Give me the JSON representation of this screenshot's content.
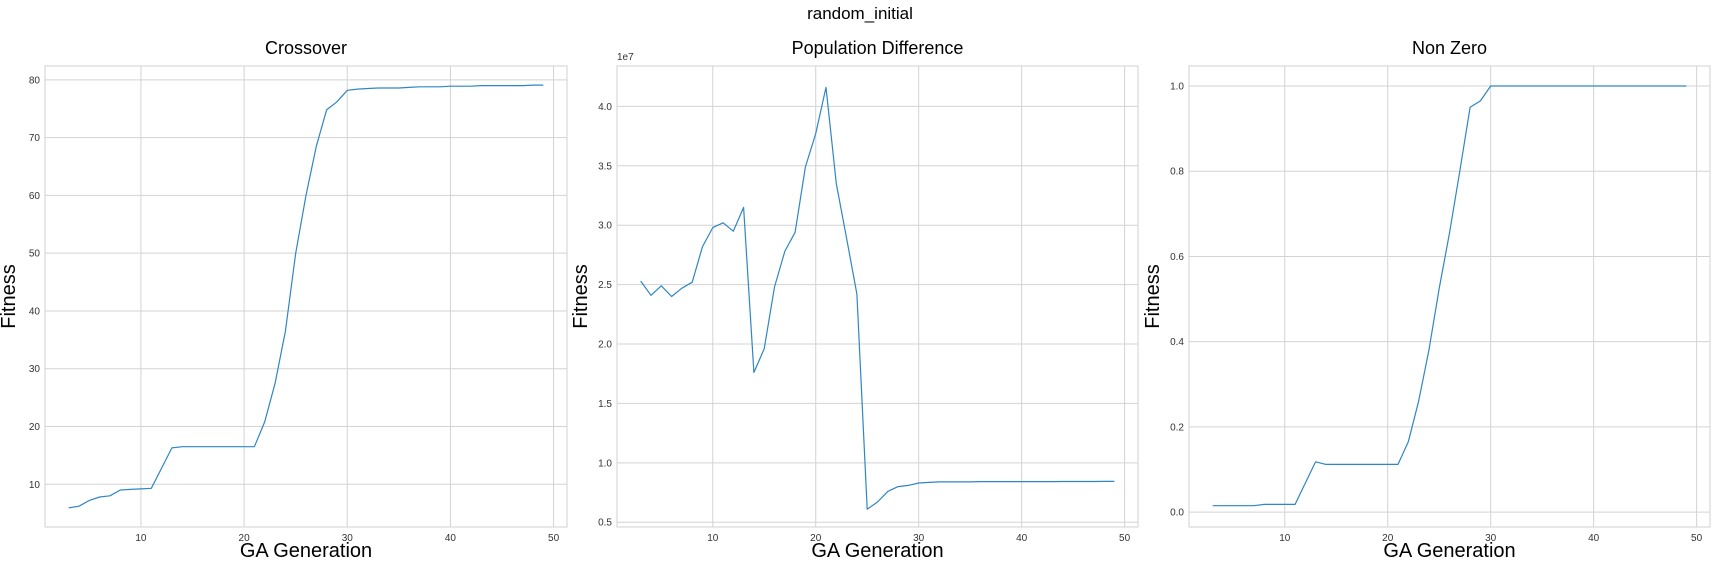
{
  "figure": {
    "title": "random_initial"
  },
  "colors": {
    "line": "#2f86c3"
  },
  "chart_data": [
    {
      "type": "line",
      "title": "Crossover",
      "xlabel": "GA Generation",
      "ylabel": "Fitness",
      "xlim": [
        0.7,
        51.3
      ],
      "ylim": [
        2.6,
        82.4
      ],
      "xticks": [
        10,
        20,
        30,
        40,
        50
      ],
      "yticks": [
        10,
        20,
        30,
        40,
        50,
        60,
        70,
        80
      ],
      "ytick_labels": [
        "10",
        "20",
        "30",
        "40",
        "50",
        "60",
        "70",
        "80"
      ],
      "grid": true,
      "x": [
        3,
        4,
        5,
        6,
        7,
        8,
        9,
        10,
        11,
        12,
        13,
        14,
        15,
        16,
        17,
        18,
        19,
        20,
        21,
        22,
        23,
        24,
        25,
        26,
        27,
        28,
        29,
        30,
        31,
        32,
        33,
        34,
        35,
        36,
        37,
        38,
        39,
        40,
        41,
        42,
        43,
        44,
        45,
        46,
        47,
        48,
        49
      ],
      "series": [
        {
          "values": [
            5.9,
            6.2,
            7.2,
            7.8,
            8.0,
            9.0,
            9.1,
            9.2,
            9.3,
            12.8,
            16.3,
            16.5,
            16.5,
            16.5,
            16.5,
            16.5,
            16.5,
            16.5,
            16.5,
            20.8,
            27.5,
            36.5,
            50.0,
            60.0,
            68.5,
            74.8,
            76.2,
            78.2,
            78.4,
            78.5,
            78.6,
            78.6,
            78.6,
            78.7,
            78.8,
            78.8,
            78.8,
            78.9,
            78.9,
            78.9,
            79.0,
            79.0,
            79.0,
            79.0,
            79.0,
            79.1,
            79.1
          ]
        }
      ]
    },
    {
      "type": "line",
      "title": "Population Difference",
      "xlabel": "GA Generation",
      "ylabel": "Fitness",
      "offset_text": "1e7",
      "xlim": [
        0.7,
        51.3
      ],
      "ylim": [
        4.6,
        43.4
      ],
      "y_units": "×1e7",
      "xticks": [
        10,
        20,
        30,
        40,
        50
      ],
      "yticks": [
        5,
        10,
        15,
        20,
        25,
        30,
        35,
        40
      ],
      "ytick_labels": [
        "0.5",
        "1.0",
        "1.5",
        "2.0",
        "2.5",
        "3.0",
        "3.5",
        "4.0"
      ],
      "grid": true,
      "x": [
        3,
        4,
        5,
        6,
        7,
        8,
        9,
        10,
        11,
        12,
        13,
        14,
        15,
        16,
        17,
        18,
        19,
        20,
        21,
        22,
        23,
        24,
        25,
        26,
        27,
        28,
        29,
        30,
        31,
        32,
        33,
        34,
        35,
        36,
        37,
        38,
        39,
        40,
        41,
        42,
        43,
        44,
        45,
        46,
        47,
        48,
        49
      ],
      "series": [
        {
          "values": [
            25.3,
            24.1,
            24.9,
            24.0,
            24.7,
            25.2,
            28.2,
            29.8,
            30.2,
            29.5,
            31.5,
            17.6,
            19.6,
            24.8,
            27.8,
            29.4,
            34.9,
            37.7,
            41.6,
            33.5,
            28.9,
            24.2,
            6.1,
            6.7,
            7.6,
            8.0,
            8.1,
            8.3,
            8.35,
            8.4,
            8.4,
            8.4,
            8.4,
            8.42,
            8.42,
            8.42,
            8.42,
            8.42,
            8.42,
            8.42,
            8.42,
            8.43,
            8.43,
            8.43,
            8.43,
            8.44,
            8.44
          ]
        }
      ]
    },
    {
      "type": "line",
      "title": "Non Zero",
      "xlabel": "GA Generation",
      "ylabel": "Fitness",
      "xlim": [
        0.7,
        51.3
      ],
      "ylim": [
        -0.035,
        1.047
      ],
      "xticks": [
        10,
        20,
        30,
        40,
        50
      ],
      "yticks": [
        0.0,
        0.2,
        0.4,
        0.6,
        0.8,
        1.0
      ],
      "ytick_labels": [
        "0.0",
        "0.2",
        "0.4",
        "0.6",
        "0.8",
        "1.0"
      ],
      "grid": true,
      "x": [
        3,
        4,
        5,
        6,
        7,
        8,
        9,
        10,
        11,
        12,
        13,
        14,
        15,
        16,
        17,
        18,
        19,
        20,
        21,
        22,
        23,
        24,
        25,
        26,
        27,
        28,
        29,
        30,
        31,
        32,
        33,
        34,
        35,
        36,
        37,
        38,
        39,
        40,
        41,
        42,
        43,
        44,
        45,
        46,
        47,
        48,
        49
      ],
      "series": [
        {
          "values": [
            0.015,
            0.015,
            0.015,
            0.015,
            0.015,
            0.018,
            0.018,
            0.018,
            0.018,
            0.068,
            0.118,
            0.112,
            0.112,
            0.112,
            0.112,
            0.112,
            0.112,
            0.112,
            0.112,
            0.165,
            0.26,
            0.38,
            0.525,
            0.655,
            0.8,
            0.95,
            0.965,
            1.0,
            1.0,
            1.0,
            1.0,
            1.0,
            1.0,
            1.0,
            1.0,
            1.0,
            1.0,
            1.0,
            1.0,
            1.0,
            1.0,
            1.0,
            1.0,
            1.0,
            1.0,
            1.0,
            1.0
          ]
        }
      ]
    }
  ]
}
